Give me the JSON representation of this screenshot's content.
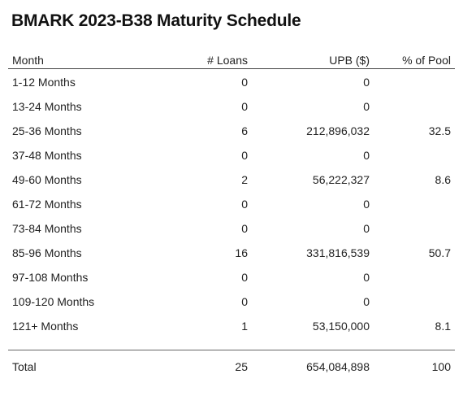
{
  "title": "BMARK 2023-B38 Maturity Schedule",
  "columns": {
    "month": "Month",
    "loans": "# Loans",
    "upb": "UPB ($)",
    "pct": "% of Pool"
  },
  "rows": [
    {
      "month": "1-12 Months",
      "loans": "0",
      "upb": "0",
      "pct": ""
    },
    {
      "month": "13-24 Months",
      "loans": "0",
      "upb": "0",
      "pct": ""
    },
    {
      "month": "25-36 Months",
      "loans": "6",
      "upb": "212,896,032",
      "pct": "32.5"
    },
    {
      "month": "37-48 Months",
      "loans": "0",
      "upb": "0",
      "pct": ""
    },
    {
      "month": "49-60 Months",
      "loans": "2",
      "upb": "56,222,327",
      "pct": "8.6"
    },
    {
      "month": "61-72 Months",
      "loans": "0",
      "upb": "0",
      "pct": ""
    },
    {
      "month": "73-84 Months",
      "loans": "0",
      "upb": "0",
      "pct": ""
    },
    {
      "month": "85-96 Months",
      "loans": "16",
      "upb": "331,816,539",
      "pct": "50.7"
    },
    {
      "month": "97-108 Months",
      "loans": "0",
      "upb": "0",
      "pct": ""
    },
    {
      "month": "109-120 Months",
      "loans": "0",
      "upb": "0",
      "pct": ""
    },
    {
      "month": "121+ Months",
      "loans": "1",
      "upb": "53,150,000",
      "pct": "8.1"
    }
  ],
  "total": {
    "month": "Total",
    "loans": "25",
    "upb": "654,084,898",
    "pct": "100"
  }
}
